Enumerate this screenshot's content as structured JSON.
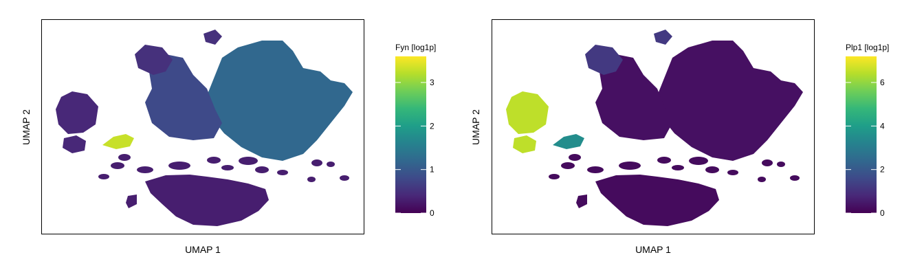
{
  "chart_data": [
    {
      "type": "scatter",
      "title": "",
      "xlabel": "UMAP 1",
      "ylabel": "UMAP 2",
      "color_scale": {
        "title": "Fyn [log1p]",
        "min": 0,
        "max": 3.6,
        "ticks": [
          0,
          1,
          2,
          3
        ],
        "tick_labels": [
          "0",
          "1",
          "2",
          "3"
        ],
        "palette": "viridis"
      },
      "regions": [
        {
          "label": "upper-right-cluster",
          "value": 1.2
        },
        {
          "label": "central-cluster",
          "value": 0.8
        },
        {
          "label": "top-left-cluster",
          "value": 0.5
        },
        {
          "label": "far-left-cluster",
          "value": 0.4
        },
        {
          "label": "lower-cluster",
          "value": 0.3
        },
        {
          "label": "bridge-highlight",
          "value": 3.3
        }
      ]
    },
    {
      "type": "scatter",
      "title": "",
      "xlabel": "UMAP 1",
      "ylabel": "UMAP 2",
      "color_scale": {
        "title": "Plp1 [log1p]",
        "min": 0,
        "max": 7.2,
        "ticks": [
          0,
          2,
          4,
          6
        ],
        "tick_labels": [
          "0",
          "2",
          "4",
          "6"
        ],
        "palette": "viridis"
      },
      "regions": [
        {
          "label": "upper-right-cluster",
          "value": 0.3
        },
        {
          "label": "central-cluster",
          "value": 0.3
        },
        {
          "label": "top-left-cluster",
          "value": 1.2
        },
        {
          "label": "far-left-cluster",
          "value": 6.5
        },
        {
          "label": "lower-cluster",
          "value": 0.2
        },
        {
          "label": "bridge-highlight",
          "value": 3.5
        }
      ]
    }
  ],
  "colors": {
    "viridis": [
      "#440154",
      "#482878",
      "#3e4a89",
      "#31688e",
      "#26828e",
      "#1f9e89",
      "#35b779",
      "#6ece58",
      "#b5de2b",
      "#fde725"
    ]
  }
}
